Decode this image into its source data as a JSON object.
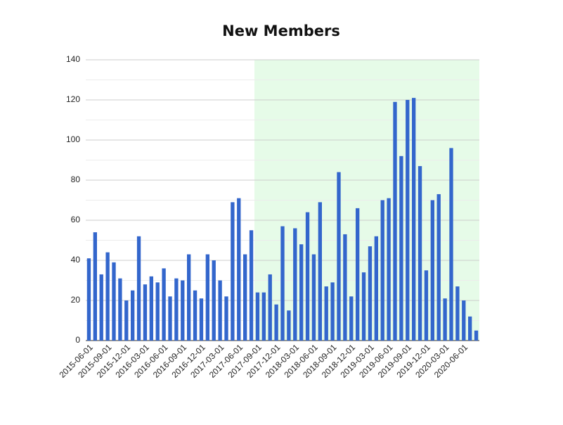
{
  "chart_data": {
    "type": "bar",
    "title": "New Members",
    "categories": [
      "2015-06-01",
      null,
      null,
      "2015-09-01",
      null,
      null,
      "2015-12-01",
      null,
      null,
      "2016-03-01",
      null,
      null,
      "2016-06-01",
      null,
      null,
      "2016-09-01",
      null,
      null,
      "2016-12-01",
      null,
      null,
      "2017-03-01",
      null,
      null,
      "2017-06-01",
      null,
      null,
      "2017-09-01",
      null,
      null,
      "2017-12-01",
      null,
      null,
      "2018-03-01",
      null,
      null,
      "2018-06-01",
      null,
      null,
      "2018-09-01",
      null,
      null,
      "2018-12-01",
      null,
      null,
      "2019-03-01",
      null,
      null,
      "2019-06-01",
      null,
      null,
      "2019-09-01",
      null,
      null,
      "2019-12-01",
      null,
      null,
      "2020-03-01",
      null,
      null,
      "2020-06-01",
      null,
      null
    ],
    "values": [
      41,
      54,
      33,
      44,
      39,
      31,
      20,
      25,
      52,
      28,
      32,
      29,
      36,
      22,
      31,
      30,
      43,
      25,
      21,
      43,
      40,
      30,
      22,
      69,
      71,
      43,
      55,
      24,
      24,
      33,
      18,
      57,
      15,
      56,
      48,
      64,
      43,
      69,
      27,
      29,
      84,
      53,
      22,
      66,
      34,
      47,
      52,
      70,
      71,
      119,
      92,
      120,
      121,
      87,
      35,
      70,
      73,
      21,
      96,
      27,
      20,
      12,
      5
    ],
    "color": "#3366cc",
    "ylim": [
      0,
      140
    ],
    "yticks": [
      0,
      20,
      40,
      60,
      80,
      100,
      120,
      140
    ],
    "minor_yticks": [
      10,
      30,
      50,
      70,
      90,
      110,
      130
    ],
    "grid": true,
    "highlight": {
      "start": "2017-09-01",
      "color": "#e6fbe8"
    }
  }
}
